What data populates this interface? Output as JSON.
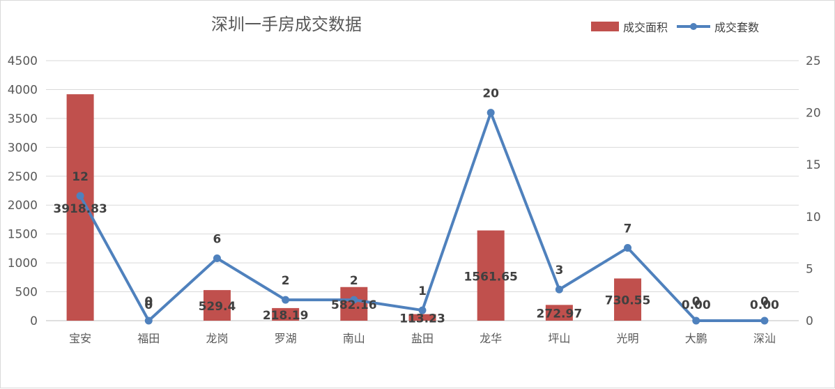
{
  "chart_data": {
    "type": "bar-line-combo",
    "title": "深圳一手房成交数据",
    "categories": [
      "宝安",
      "福田",
      "龙岗",
      "罗湖",
      "南山",
      "盐田",
      "龙华",
      "坪山",
      "光明",
      "大鹏",
      "深汕"
    ],
    "series": [
      {
        "name": "成交面积",
        "type": "bar",
        "axis": "left",
        "color": "#c0504d",
        "values": [
          3918.83,
          0,
          529.4,
          218.19,
          582.16,
          113.23,
          1561.65,
          272.97,
          730.55,
          0,
          0
        ],
        "labels": [
          "3918.83",
          "0",
          "529.4",
          "218.19",
          "582.16",
          "113.23",
          "1561.65",
          "272.97",
          "730.55",
          "0.00",
          "0.00"
        ]
      },
      {
        "name": "成交套数",
        "type": "line",
        "axis": "right",
        "color": "#4f81bd",
        "values": [
          12,
          0,
          6,
          2,
          2,
          1,
          20,
          3,
          7,
          0,
          0
        ],
        "labels": [
          "12",
          "0",
          "6",
          "2",
          "2",
          "1",
          "20",
          "3",
          "7",
          "0",
          "0"
        ]
      }
    ],
    "y_left": {
      "min": 0,
      "max": 4500,
      "ticks": [
        0,
        500,
        1000,
        1500,
        2000,
        2500,
        3000,
        3500,
        4000,
        4500
      ]
    },
    "y_right": {
      "min": 0,
      "max": 25,
      "ticks": [
        0,
        5,
        10,
        15,
        20,
        25
      ]
    },
    "grid": true,
    "legend_position": "top-right"
  }
}
